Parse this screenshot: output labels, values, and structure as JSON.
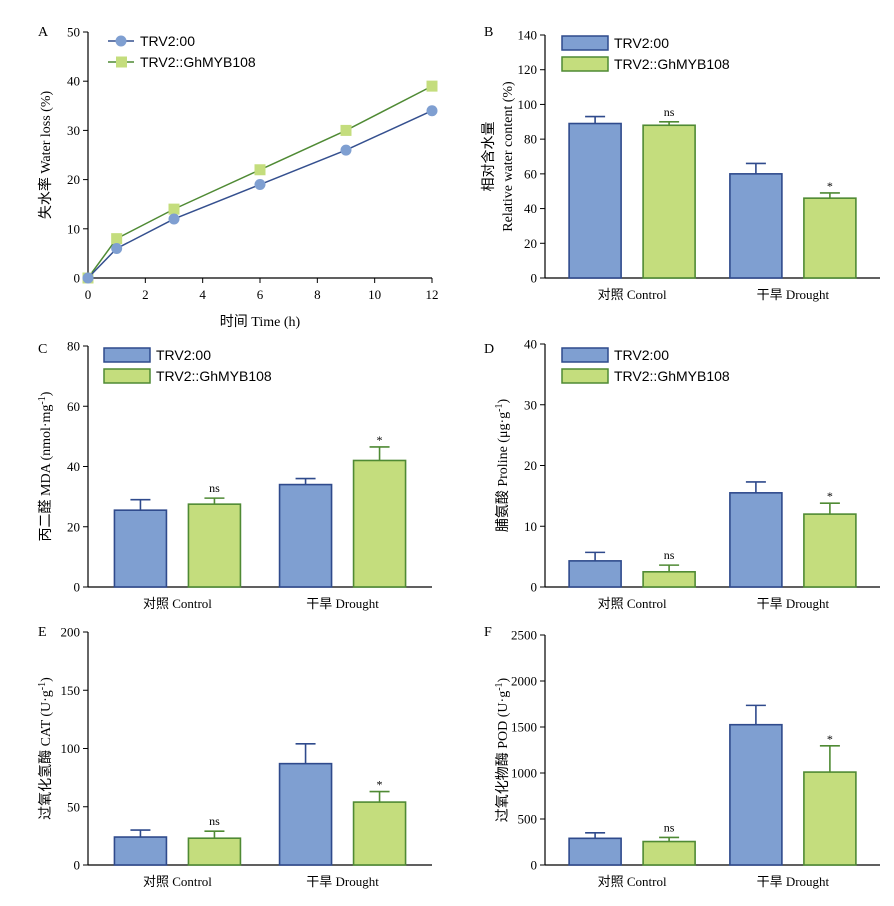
{
  "colors": {
    "series1_fill": "#7f9fd1",
    "series1_stroke": "#2f4a8c",
    "series2_fill": "#c4dd7d",
    "series2_stroke": "#4f8a34",
    "line1": "#35508f",
    "line2": "#4f8a34",
    "marker1": "#7f9fd1",
    "marker2": "#c4dd7d"
  },
  "legend": [
    "TRV2:00",
    "TRV2::GhMYB108"
  ],
  "chart_data": [
    {
      "id": "A",
      "type": "line",
      "panel": "A",
      "ylabel": "失水率 Water loss (%)",
      "xlabel": "时间 Time (h)",
      "xlim": [
        0,
        12
      ],
      "ylim": [
        0,
        50
      ],
      "xticks": [
        0,
        2,
        4,
        6,
        8,
        10,
        12
      ],
      "yticks": [
        0,
        10,
        20,
        30,
        40,
        50
      ],
      "x": [
        0,
        1,
        3,
        6,
        9,
        12
      ],
      "series": [
        {
          "name": "TRV2:00",
          "values": [
            0,
            6,
            12,
            19,
            26,
            34
          ]
        },
        {
          "name": "TRV2::GhMYB108",
          "values": [
            0,
            8,
            14,
            22,
            30,
            39
          ]
        }
      ]
    },
    {
      "id": "B",
      "type": "bar",
      "panel": "B",
      "ylabel_cn": "相对含水量",
      "ylabel_en": "Relative water content (%)",
      "categories": [
        "对照 Control",
        "干旱 Drought"
      ],
      "ylim": [
        0,
        140
      ],
      "yticks": [
        0,
        20,
        40,
        60,
        80,
        100,
        120,
        140
      ],
      "series": [
        {
          "name": "TRV2:00",
          "values": [
            89,
            60
          ],
          "errors": [
            4,
            6
          ]
        },
        {
          "name": "TRV2::GhMYB108",
          "values": [
            88,
            46
          ],
          "errors": [
            2,
            3
          ]
        }
      ],
      "annotations": [
        "ns",
        "*"
      ]
    },
    {
      "id": "C",
      "type": "bar",
      "panel": "C",
      "ylabel_main": "丙二醛 MDA (nmol·mg",
      "ylabel_sup": "-1",
      "ylabel_end": ")",
      "categories": [
        "对照 Control",
        "干旱 Drought"
      ],
      "ylim": [
        0,
        80
      ],
      "yticks": [
        0,
        20,
        40,
        60,
        80
      ],
      "series": [
        {
          "name": "TRV2:00",
          "values": [
            25.5,
            34
          ],
          "errors": [
            3.5,
            2
          ]
        },
        {
          "name": "TRV2::GhMYB108",
          "values": [
            27.5,
            42
          ],
          "errors": [
            2,
            4.5
          ]
        }
      ],
      "annotations": [
        "ns",
        "*"
      ]
    },
    {
      "id": "D",
      "type": "bar",
      "panel": "D",
      "ylabel_main": "脯氨酸 Proline (μg·g",
      "ylabel_sup": "-1",
      "ylabel_end": ")",
      "categories": [
        "对照 Control",
        "干旱 Drought"
      ],
      "ylim": [
        0,
        40
      ],
      "yticks": [
        0,
        10,
        20,
        30,
        40
      ],
      "series": [
        {
          "name": "TRV2:00",
          "values": [
            4.3,
            15.5
          ],
          "errors": [
            1.4,
            1.8
          ]
        },
        {
          "name": "TRV2::GhMYB108",
          "values": [
            2.5,
            12
          ],
          "errors": [
            1.1,
            1.8
          ]
        }
      ],
      "annotations": [
        "ns",
        "*"
      ]
    },
    {
      "id": "E",
      "type": "bar",
      "panel": "E",
      "ylabel_main": "过氧化氢酶 CAT (U·g",
      "ylabel_sup": "-1",
      "ylabel_end": ")",
      "categories": [
        "对照 Control",
        "干旱 Drought"
      ],
      "ylim": [
        0,
        200
      ],
      "yticks": [
        0,
        50,
        100,
        150,
        200
      ],
      "series": [
        {
          "name": "TRV2:00",
          "values": [
            24,
            87
          ],
          "errors": [
            6,
            17
          ]
        },
        {
          "name": "TRV2::GhMYB108",
          "values": [
            23,
            54
          ],
          "errors": [
            6,
            9
          ]
        }
      ],
      "annotations": [
        "ns",
        "*"
      ]
    },
    {
      "id": "F",
      "type": "bar",
      "panel": "F",
      "ylabel_main": "过氧化物酶 POD (U·g",
      "ylabel_sup": "-1",
      "ylabel_end": ")",
      "categories": [
        "对照 Control",
        "干旱 Drought"
      ],
      "ylim": [
        0,
        2500
      ],
      "yticks": [
        0,
        500,
        1000,
        1500,
        2000,
        2500
      ],
      "series": [
        {
          "name": "TRV2:00",
          "values": [
            290,
            1525
          ],
          "errors": [
            60,
            210
          ]
        },
        {
          "name": "TRV2::GhMYB108",
          "values": [
            255,
            1010
          ],
          "errors": [
            45,
            285
          ]
        }
      ],
      "annotations": [
        "ns",
        "*"
      ]
    }
  ]
}
